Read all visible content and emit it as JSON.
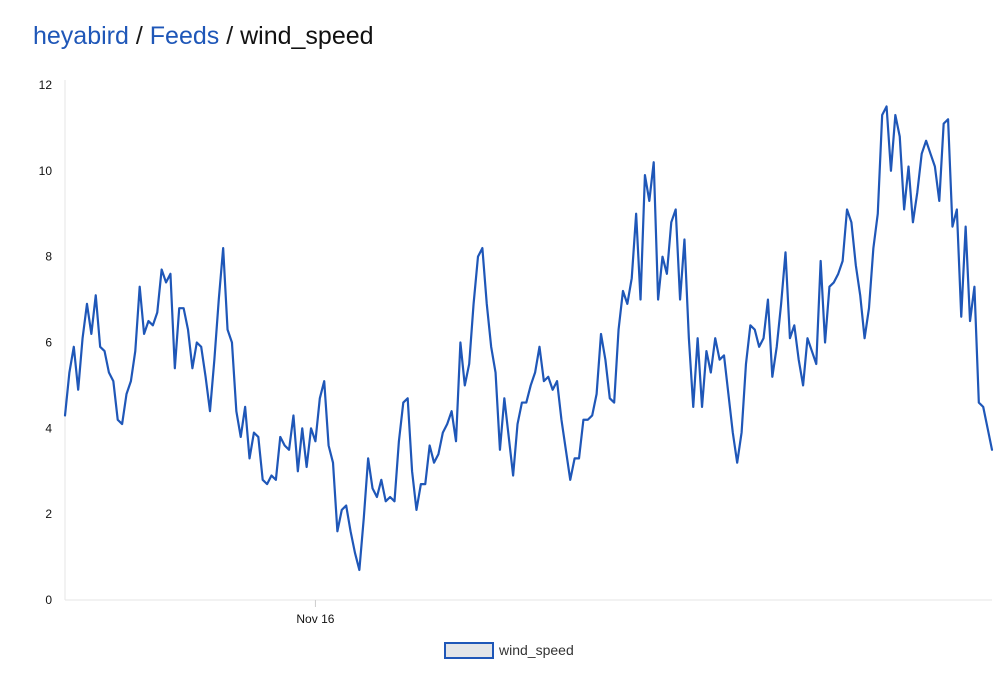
{
  "breadcrumb": {
    "owner": "heyabird",
    "feeds": "Feeds",
    "feed": "wind_speed",
    "separator": "/"
  },
  "colors": {
    "link": "#1f57b8",
    "series_line": "#1f57b8",
    "legend_fill": "#e3e5e8",
    "axis": "#e6e6e6"
  },
  "chart_data": {
    "type": "line",
    "title": "",
    "xlabel": "",
    "ylabel": "",
    "ylim": [
      0,
      12
    ],
    "y_ticks": [
      0,
      2,
      4,
      6,
      8,
      10,
      12
    ],
    "x_ticks": [
      {
        "label": "Nov 16",
        "index": 57
      }
    ],
    "grid": false,
    "legend": "bottom-center",
    "series": [
      {
        "name": "wind_speed",
        "values": [
          4.3,
          5.3,
          5.9,
          4.9,
          6.1,
          6.9,
          6.2,
          7.1,
          5.9,
          5.8,
          5.3,
          5.1,
          4.2,
          4.1,
          4.8,
          5.1,
          5.8,
          7.3,
          6.2,
          6.5,
          6.4,
          6.7,
          7.7,
          7.4,
          7.6,
          5.4,
          6.8,
          6.8,
          6.3,
          5.4,
          6.0,
          5.9,
          5.2,
          4.4,
          5.6,
          7.0,
          8.2,
          6.3,
          6.0,
          4.4,
          3.8,
          4.5,
          3.3,
          3.9,
          3.8,
          2.8,
          2.7,
          2.9,
          2.8,
          3.8,
          3.6,
          3.5,
          4.3,
          3.0,
          4.0,
          3.1,
          4.0,
          3.7,
          4.7,
          5.1,
          3.6,
          3.2,
          1.6,
          2.1,
          2.2,
          1.6,
          1.1,
          0.7,
          1.9,
          3.3,
          2.6,
          2.4,
          2.8,
          2.3,
          2.4,
          2.3,
          3.7,
          4.6,
          4.7,
          3.0,
          2.1,
          2.7,
          2.7,
          3.6,
          3.2,
          3.4,
          3.9,
          4.1,
          4.4,
          3.7,
          6.0,
          5.0,
          5.5,
          6.9,
          8.0,
          8.2,
          6.9,
          5.9,
          5.3,
          3.5,
          4.7,
          3.8,
          2.9,
          4.1,
          4.6,
          4.6,
          5.0,
          5.3,
          5.9,
          5.1,
          5.2,
          4.9,
          5.1,
          4.2,
          3.5,
          2.8,
          3.3,
          3.3,
          4.2,
          4.2,
          4.3,
          4.8,
          6.2,
          5.6,
          4.7,
          4.6,
          6.3,
          7.2,
          6.9,
          7.5,
          9.0,
          7.0,
          9.9,
          9.3,
          10.2,
          7.0,
          8.0,
          7.6,
          8.8,
          9.1,
          7.0,
          8.4,
          6.1,
          4.5,
          6.1,
          4.5,
          5.8,
          5.3,
          6.1,
          5.6,
          5.7,
          4.8,
          3.9,
          3.2,
          3.9,
          5.5,
          6.4,
          6.3,
          5.9,
          6.1,
          7.0,
          5.2,
          5.9,
          6.9,
          8.1,
          6.1,
          6.4,
          5.6,
          5.0,
          6.1,
          5.8,
          5.5,
          7.9,
          6.0,
          7.3,
          7.4,
          7.6,
          7.9,
          9.1,
          8.8,
          7.8,
          7.1,
          6.1,
          6.8,
          8.2,
          9.0,
          11.3,
          11.5,
          10.0,
          11.3,
          10.8,
          9.1,
          10.1,
          8.8,
          9.5,
          10.4,
          10.7,
          10.4,
          10.1,
          9.3,
          11.1,
          11.2,
          8.7,
          9.1,
          6.6,
          8.7,
          6.5,
          7.3,
          4.6,
          4.5,
          4.0,
          3.5
        ]
      }
    ]
  }
}
